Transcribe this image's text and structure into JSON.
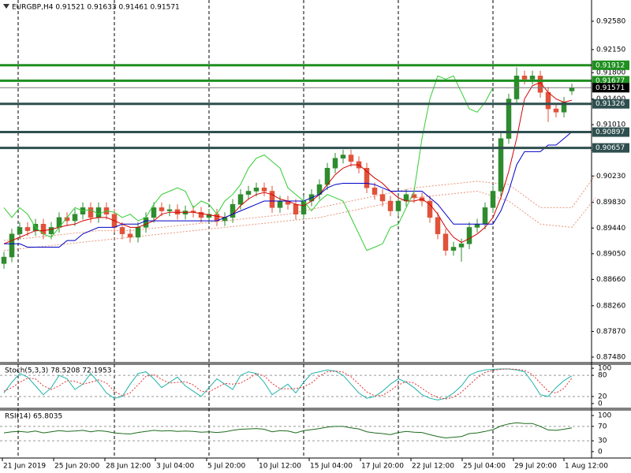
{
  "chart_data": [
    {
      "type": "candlestick",
      "title": "EURGBP,H4 0.91521 0.91633 0.91461 0.91571",
      "xlim": [
        -0.5,
        74.5
      ],
      "ylim": [
        0.87396,
        0.92903
      ],
      "yticks": [
        {
          "value": 0.9258,
          "label": "0.92580"
        },
        {
          "value": 0.9215,
          "label": "0.92150"
        },
        {
          "value": 0.918,
          "label": "0.91800"
        },
        {
          "value": 0.914,
          "label": "0.91400"
        },
        {
          "value": 0.9101,
          "label": "0.91010"
        },
        {
          "value": 0.9062,
          "label": "0.90620"
        },
        {
          "value": 0.9023,
          "label": "0.90230"
        },
        {
          "value": 0.8983,
          "label": "0.89830"
        },
        {
          "value": 0.8944,
          "label": "0.89440"
        },
        {
          "value": 0.8905,
          "label": "0.89050"
        },
        {
          "value": 0.8866,
          "label": "0.88660"
        },
        {
          "value": 0.8826,
          "label": "0.88260"
        },
        {
          "value": 0.8787,
          "label": "0.87870"
        },
        {
          "value": 0.8748,
          "label": "0.87480"
        }
      ],
      "xticks": [
        {
          "value": -0.2,
          "label": "21 Jun 2019"
        },
        {
          "value": 6.3,
          "label": "25 Jun 20:00"
        },
        {
          "value": 12.8,
          "label": "28 Jun 12:00"
        },
        {
          "value": 19.2,
          "label": "3 Jul 04:00"
        },
        {
          "value": 25.7,
          "label": "5 Jul 20:00"
        },
        {
          "value": 32.2,
          "label": "10 Jul 12:00"
        },
        {
          "value": 38.7,
          "label": "15 Jul 04:00"
        },
        {
          "value": 45.2,
          "label": "17 Jul 20:00"
        },
        {
          "value": 51.6,
          "label": "22 Jul 12:00"
        },
        {
          "value": 58.1,
          "label": "25 Jul 04:00"
        },
        {
          "value": 64.6,
          "label": "29 Jul 20:00"
        },
        {
          "value": 71,
          "label": "1 Aug 12:00"
        }
      ],
      "up_color": "#2e8b2e",
      "down_color": "#e0523a",
      "candles": {
        "open": [
          0.889,
          0.89,
          0.8935,
          0.8945,
          0.894,
          0.895,
          0.8935,
          0.8945,
          0.896,
          0.8955,
          0.8965,
          0.8975,
          0.896,
          0.8975,
          0.8965,
          0.8945,
          0.8935,
          0.893,
          0.8945,
          0.896,
          0.8975,
          0.897,
          0.8972,
          0.8965,
          0.897,
          0.8968,
          0.896,
          0.8965,
          0.8955,
          0.896,
          0.898,
          0.8995,
          0.9,
          0.9005,
          0.9,
          0.8975,
          0.8985,
          0.898,
          0.8965,
          0.8985,
          0.8995,
          0.901,
          0.9035,
          0.905,
          0.9055,
          0.9045,
          0.9035,
          0.9005,
          0.8995,
          0.8985,
          0.897,
          0.8985,
          0.8995,
          0.899,
          0.8985,
          0.896,
          0.8935,
          0.891,
          0.8915,
          0.892,
          0.8945,
          0.895,
          0.8975,
          0.9,
          0.908,
          0.914,
          0.9175,
          0.917,
          0.9175,
          0.915,
          0.9125,
          0.912,
          0.91521
        ],
        "high": [
          0.8908,
          0.8943,
          0.8953,
          0.8953,
          0.8958,
          0.8958,
          0.8953,
          0.8968,
          0.8968,
          0.8973,
          0.8983,
          0.8983,
          0.8983,
          0.8983,
          0.8973,
          0.8953,
          0.8943,
          0.8953,
          0.8968,
          0.8983,
          0.8983,
          0.898,
          0.898,
          0.8978,
          0.8978,
          0.8976,
          0.8973,
          0.8973,
          0.8968,
          0.8988,
          0.9003,
          0.9008,
          0.9013,
          0.9013,
          0.9008,
          0.8993,
          0.8993,
          0.8988,
          0.8993,
          0.9003,
          0.9018,
          0.9043,
          0.9058,
          0.9063,
          0.9063,
          0.9053,
          0.9043,
          0.9013,
          0.9003,
          0.8993,
          0.8993,
          0.9003,
          0.9003,
          0.8998,
          0.8993,
          0.8968,
          0.8943,
          0.8923,
          0.8928,
          0.8953,
          0.8958,
          0.8983,
          0.9008,
          0.9088,
          0.9148,
          0.9188,
          0.9183,
          0.9183,
          0.9183,
          0.9158,
          0.9133,
          0.9143,
          0.91633
        ],
        "low": [
          0.8882,
          0.8892,
          0.8927,
          0.8932,
          0.8932,
          0.8927,
          0.8927,
          0.8937,
          0.8947,
          0.8947,
          0.8957,
          0.8952,
          0.8952,
          0.8957,
          0.8937,
          0.8927,
          0.8922,
          0.8922,
          0.8937,
          0.8952,
          0.8962,
          0.8962,
          0.8957,
          0.8957,
          0.896,
          0.8952,
          0.8952,
          0.8947,
          0.8947,
          0.8952,
          0.8972,
          0.8987,
          0.8992,
          0.8992,
          0.8967,
          0.8967,
          0.8972,
          0.8957,
          0.8957,
          0.8977,
          0.8987,
          0.9002,
          0.9027,
          0.9042,
          0.9037,
          0.9027,
          0.8997,
          0.8987,
          0.8977,
          0.8962,
          0.8962,
          0.8977,
          0.8982,
          0.8977,
          0.8952,
          0.8927,
          0.8902,
          0.8902,
          0.8893,
          0.8912,
          0.8937,
          0.8942,
          0.8967,
          0.8992,
          0.9072,
          0.9132,
          0.9162,
          0.9162,
          0.9142,
          0.9105,
          0.9112,
          0.9112,
          0.91461
        ],
        "close": [
          0.89,
          0.8935,
          0.8945,
          0.894,
          0.895,
          0.8935,
          0.8945,
          0.896,
          0.8955,
          0.8965,
          0.8975,
          0.896,
          0.8975,
          0.8965,
          0.8945,
          0.8935,
          0.893,
          0.8945,
          0.896,
          0.8975,
          0.897,
          0.8972,
          0.8965,
          0.897,
          0.8968,
          0.896,
          0.8965,
          0.8955,
          0.896,
          0.898,
          0.8995,
          0.9,
          0.9005,
          0.9,
          0.8975,
          0.8985,
          0.898,
          0.8965,
          0.8985,
          0.8995,
          0.901,
          0.9035,
          0.905,
          0.9055,
          0.9045,
          0.9035,
          0.9005,
          0.8995,
          0.8985,
          0.897,
          0.8985,
          0.8995,
          0.899,
          0.8985,
          0.896,
          0.8935,
          0.891,
          0.8915,
          0.892,
          0.8945,
          0.895,
          0.8975,
          0.9,
          0.908,
          0.914,
          0.9175,
          0.917,
          0.9175,
          0.915,
          0.9125,
          0.912,
          0.9135,
          0.91571
        ]
      },
      "lines": [
        {
          "color": "#d40000",
          "values": [
            0.892,
            0.8925,
            0.893,
            0.8935,
            0.894,
            0.894,
            0.8942,
            0.8945,
            0.8948,
            0.895,
            0.8955,
            0.8958,
            0.896,
            0.896,
            0.8955,
            0.895,
            0.8945,
            0.8945,
            0.895,
            0.8955,
            0.8965,
            0.8968,
            0.8968,
            0.8968,
            0.8968,
            0.8966,
            0.8964,
            0.8962,
            0.896,
            0.8965,
            0.8978,
            0.8988,
            0.8995,
            0.8998,
            0.8995,
            0.8988,
            0.8985,
            0.898,
            0.8978,
            0.8985,
            0.8995,
            0.901,
            0.9025,
            0.9035,
            0.904,
            0.904,
            0.903,
            0.902,
            0.9012,
            0.9,
            0.899,
            0.8985,
            0.8985,
            0.8988,
            0.898,
            0.8965,
            0.8945,
            0.893,
            0.8922,
            0.8928,
            0.8935,
            0.8945,
            0.896,
            0.899,
            0.903,
            0.908,
            0.914,
            0.916,
            0.9165,
            0.915,
            0.914,
            0.9135,
            0.9138
          ]
        },
        {
          "color": "#0000c8",
          "values": [
            0.892,
            0.892,
            0.892,
            0.8915,
            0.8915,
            0.8915,
            0.8915,
            0.8915,
            0.8925,
            0.8925,
            0.8935,
            0.894,
            0.8945,
            0.8945,
            0.8945,
            0.895,
            0.895,
            0.895,
            0.8955,
            0.8955,
            0.8955,
            0.8955,
            0.8955,
            0.8955,
            0.8955,
            0.8955,
            0.8955,
            0.8955,
            0.896,
            0.8965,
            0.897,
            0.8975,
            0.898,
            0.8985,
            0.8985,
            0.8985,
            0.8985,
            0.8985,
            0.8985,
            0.899,
            0.8995,
            0.9005,
            0.901,
            0.9012,
            0.9012,
            0.9012,
            0.9012,
            0.901,
            0.9005,
            0.9,
            0.9,
            0.9,
            0.9,
            0.9,
            0.899,
            0.898,
            0.8965,
            0.895,
            0.895,
            0.895,
            0.895,
            0.895,
            0.895,
            0.897,
            0.9,
            0.904,
            0.906,
            0.906,
            0.906,
            0.907,
            0.907,
            0.908,
            0.909
          ]
        },
        {
          "color": "#33cc33",
          "values": [
            0.8975,
            0.896,
            0.8975,
            0.8965,
            0.8945,
            0.8935,
            0.893,
            0.8945,
            0.896,
            0.8975,
            0.897,
            0.8972,
            0.8965,
            0.897,
            0.8968,
            0.896,
            0.8965,
            0.8955,
            0.896,
            0.898,
            0.8995,
            0.9,
            0.9005,
            0.9,
            0.8975,
            0.8985,
            0.898,
            0.8965,
            0.8985,
            0.8995,
            0.901,
            0.9035,
            0.905,
            0.9055,
            0.9045,
            0.9035,
            0.9005,
            0.8995,
            0.8985,
            0.897,
            0.8985,
            0.8995,
            0.899,
            0.8985,
            0.896,
            0.8935,
            0.891,
            0.8915,
            0.892,
            0.8945,
            0.895,
            0.8975,
            0.9,
            0.908,
            0.914,
            0.9175,
            0.917,
            0.9175,
            0.915,
            0.9125,
            0.912,
            0.9135,
            0.9157,
            null,
            null,
            null,
            null,
            null,
            null,
            null,
            null,
            null,
            null
          ]
        },
        {
          "color": "#e9967a",
          "dashed": true,
          "x": [
            0,
            4,
            8,
            12,
            16,
            20,
            24,
            28,
            32,
            36,
            40,
            44,
            48,
            52,
            56,
            60,
            64,
            68,
            72,
            75
          ],
          "values": [
            0.8925,
            0.893,
            0.8935,
            0.894,
            0.894,
            0.8945,
            0.895,
            0.8955,
            0.896,
            0.8965,
            0.8975,
            0.8985,
            0.8995,
            0.9005,
            0.901,
            0.9015,
            0.901,
            0.8975,
            0.8975,
            0.9025
          ]
        },
        {
          "color": "#e9967a",
          "dashed": true,
          "x": [
            0,
            4,
            8,
            12,
            16,
            20,
            24,
            28,
            32,
            36,
            40,
            44,
            48,
            52,
            56,
            60,
            64,
            68,
            72,
            75
          ],
          "values": [
            0.891,
            0.8915,
            0.892,
            0.8925,
            0.893,
            0.8935,
            0.894,
            0.8945,
            0.895,
            0.8955,
            0.896,
            0.897,
            0.898,
            0.899,
            0.8995,
            0.9,
            0.8985,
            0.895,
            0.8945,
            0.899
          ]
        }
      ],
      "levels": [
        {
          "value": 0.91912,
          "color": "#1f8f1f"
        },
        {
          "value": 0.91677,
          "color": "#1f8f1f"
        },
        {
          "value": 0.91571,
          "color": "#000000"
        },
        {
          "value": 0.91326,
          "color": "#2f4f4f"
        },
        {
          "value": 0.90897,
          "color": "#2f4f4f"
        },
        {
          "value": 0.90657,
          "color": "#2f4f4f"
        }
      ]
    },
    {
      "type": "line",
      "title": "Stoch(5,3,3) 78.5208 72.1953",
      "xlim": [
        -0.5,
        74.5
      ],
      "ylim": [
        -13.6,
        111.4
      ],
      "yticks": [
        100,
        80,
        20,
        0
      ],
      "levels": [
        80,
        20
      ],
      "series": [
        {
          "color": "#20b2aa",
          "values": [
            30,
            60,
            85,
            75,
            50,
            25,
            45,
            80,
            70,
            40,
            55,
            85,
            60,
            30,
            15,
            20,
            55,
            85,
            90,
            70,
            45,
            60,
            75,
            50,
            35,
            20,
            45,
            70,
            55,
            40,
            80,
            90,
            85,
            60,
            25,
            40,
            55,
            30,
            60,
            85,
            90,
            95,
            92,
            80,
            55,
            30,
            15,
            20,
            35,
            55,
            70,
            60,
            45,
            25,
            15,
            10,
            15,
            30,
            50,
            80,
            90,
            95,
            97,
            98,
            98,
            95,
            90,
            60,
            25,
            20,
            45,
            65,
            78.5208
          ]
        },
        {
          "color": "#e03030",
          "dashed": true,
          "values": [
            35,
            45,
            60,
            72,
            70,
            50,
            40,
            50,
            65,
            63,
            55,
            60,
            67,
            58,
            35,
            22,
            30,
            53,
            77,
            82,
            68,
            58,
            60,
            62,
            53,
            35,
            33,
            45,
            57,
            55,
            58,
            70,
            85,
            78,
            57,
            42,
            42,
            42,
            48,
            58,
            78,
            90,
            92,
            89,
            76,
            55,
            33,
            22,
            23,
            37,
            53,
            62,
            58,
            43,
            28,
            17,
            13,
            18,
            32,
            53,
            73,
            88,
            94,
            97,
            98,
            97,
            94,
            82,
            58,
            35,
            30,
            43,
            72.1953
          ]
        }
      ]
    },
    {
      "type": "line",
      "title": "RSI(14) 65.8035",
      "xlim": [
        -0.5,
        74.5
      ],
      "ylim": [
        -17.8,
        115.6
      ],
      "yticks": [
        100,
        70,
        30,
        0
      ],
      "levels": [
        70,
        30
      ],
      "series": [
        {
          "color": "#1e6b1e",
          "values": [
            52,
            55,
            56,
            54,
            57,
            52,
            55,
            58,
            56,
            57,
            59,
            55,
            58,
            56,
            52,
            50,
            49,
            53,
            56,
            59,
            57,
            58,
            56,
            57,
            56,
            54,
            55,
            53,
            55,
            59,
            62,
            63,
            64,
            62,
            55,
            58,
            57,
            52,
            58,
            61,
            64,
            68,
            70,
            70,
            66,
            63,
            55,
            52,
            50,
            47,
            53,
            56,
            54,
            53,
            47,
            42,
            38,
            40,
            42,
            50,
            52,
            56,
            61,
            71,
            77,
            80,
            78,
            78,
            70,
            60,
            59,
            62,
            65.8035
          ]
        }
      ]
    }
  ]
}
